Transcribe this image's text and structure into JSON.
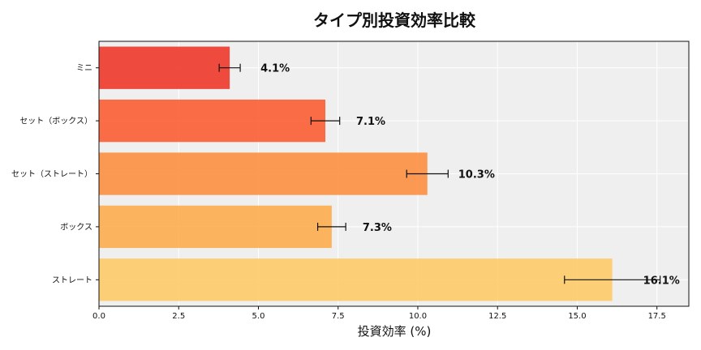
{
  "chart_data": {
    "type": "bar",
    "orientation": "horizontal",
    "title": "タイプ別投資効率比較",
    "xlabel": "投資効率 (%)",
    "ylabel": "",
    "xlim": [
      0,
      18.5
    ],
    "xticks": [
      0.0,
      2.5,
      5.0,
      7.5,
      10.0,
      12.5,
      15.0,
      17.5
    ],
    "xtick_labels": [
      "0.0",
      "2.5",
      "5.0",
      "7.5",
      "10.0",
      "12.5",
      "15.0",
      "17.5"
    ],
    "grid": true,
    "categories": [
      "ミニ",
      "セット（ボックス）",
      "セット（ストレート）",
      "ボックス",
      "ストレート"
    ],
    "values": [
      4.1,
      7.1,
      10.3,
      7.3,
      16.1
    ],
    "errors": [
      0.33,
      0.45,
      0.65,
      0.44,
      1.5
    ],
    "data_labels": [
      "4.1%",
      "7.1%",
      "10.3%",
      "7.3%",
      "16.1%"
    ],
    "colors": [
      "#ee3324",
      "#fb5a2f",
      "#fd8d3c",
      "#feab4a",
      "#fec965"
    ],
    "plot_background": "#efefef"
  }
}
